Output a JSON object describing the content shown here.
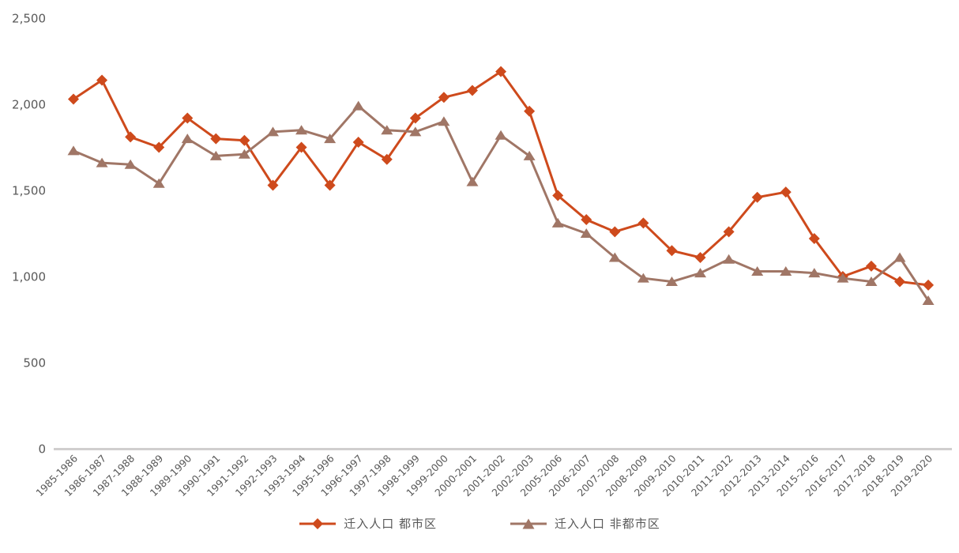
{
  "chart_data": {
    "type": "line",
    "title": "",
    "xlabel": "",
    "ylabel": "",
    "grid": false,
    "legend_position": "bottom",
    "ylim": [
      0,
      2500
    ],
    "yticks": [
      0,
      500,
      1000,
      1500,
      2000,
      2500
    ],
    "ytick_labels": [
      "0",
      "500",
      "1,000",
      "1,500",
      "2,000",
      "2,500"
    ],
    "categories": [
      "1985-1986",
      "1986-1987",
      "1987-1988",
      "1988-1989",
      "1989-1990",
      "1990-1991",
      "1991-1992",
      "1992-1993",
      "1993-1994",
      "1995-1996",
      "1996-1997",
      "1997-1998",
      "1998-1999",
      "1999-2000",
      "2000-2001",
      "2001-2002",
      "2002-2003",
      "2005-2006",
      "2006-2007",
      "2007-2008",
      "2008-2009",
      "2009-2010",
      "2010-2011",
      "2011-2012",
      "2012-2013",
      "2013-2014",
      "2015-2016",
      "2016-2017",
      "2017-2018",
      "2018-2019",
      "2019-2020"
    ],
    "series": [
      {
        "name": "迁入人口 都市区",
        "marker": "diamond",
        "color": "#CE4A1C",
        "values": [
          2030,
          2140,
          1810,
          1750,
          1920,
          1800,
          1790,
          1530,
          1750,
          1530,
          1780,
          1680,
          1920,
          2040,
          2080,
          2190,
          1960,
          1470,
          1330,
          1260,
          1310,
          1150,
          1110,
          1260,
          1460,
          1490,
          1220,
          1000,
          1060,
          970,
          950
        ]
      },
      {
        "name": "迁入人口 非都市区",
        "marker": "triangle",
        "color": "#A07666",
        "values": [
          1730,
          1660,
          1650,
          1540,
          1800,
          1700,
          1710,
          1840,
          1850,
          1800,
          1990,
          1850,
          1840,
          1900,
          1550,
          1820,
          1700,
          1310,
          1250,
          1110,
          990,
          970,
          1020,
          1100,
          1030,
          1030,
          1020,
          990,
          970,
          1110,
          860
        ]
      }
    ],
    "colors": {
      "background": "#FFFFFF",
      "axis_line": "#D0CECE",
      "tick_text": "#595959",
      "series_metro": "#CE4A1C",
      "series_nonmetro": "#A07666"
    }
  }
}
